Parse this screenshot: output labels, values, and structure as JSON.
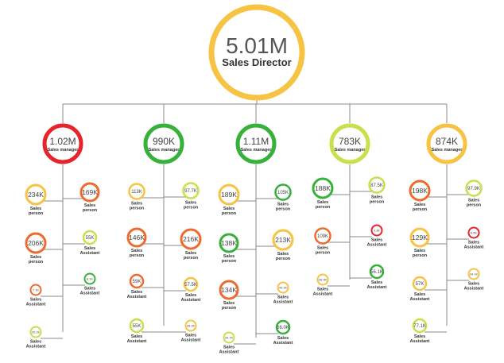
{
  "colors": {
    "line": "#8a8a8a",
    "yellow": "#f6c343",
    "orange": "#ef6a2d",
    "red": "#e5242b",
    "green": "#36b13a",
    "lime": "#c8e04a",
    "text": "#333333"
  },
  "root": {
    "value": "5.01M",
    "title": "Sales Director",
    "color": "yellow"
  },
  "managers": [
    {
      "value": "1.02M",
      "title": "Sales manager",
      "color": "red",
      "left": [
        {
          "value": "234K",
          "role": [
            "Sales",
            "person"
          ],
          "color": "yellow"
        },
        {
          "value": "206K",
          "role": [
            "Sales",
            "person"
          ],
          "color": "orange"
        },
        {
          "value": "7.1K",
          "role": [
            "Sales",
            "Assistant"
          ],
          "color": "orange"
        },
        {
          "value": "20.2K",
          "role": [
            "Sales",
            "Assistant"
          ],
          "color": "lime"
        }
      ],
      "right": [
        {
          "value": "169K",
          "role": [
            "Sales",
            "person"
          ],
          "color": "orange"
        },
        {
          "value": "55K",
          "role": [
            "Sales",
            "Assistant"
          ],
          "color": "lime"
        },
        {
          "value": "8.1K",
          "role": [
            "Sales",
            "Assistant"
          ],
          "color": "green"
        }
      ]
    },
    {
      "value": "990K",
      "title": "Sales manager",
      "color": "green",
      "left": [
        {
          "value": "113K",
          "role": [
            "Sales",
            "person"
          ],
          "color": "yellow"
        },
        {
          "value": "146K",
          "role": [
            "Sales",
            "person"
          ],
          "color": "orange"
        },
        {
          "value": "59K",
          "role": [
            "Sales",
            "Assistant"
          ],
          "color": "orange"
        },
        {
          "value": "55K",
          "role": [
            "Sales",
            "Assistant"
          ],
          "color": "lime"
        }
      ],
      "right": [
        {
          "value": "97.7K",
          "role": [
            "Sales",
            "person"
          ],
          "color": "lime"
        },
        {
          "value": "216K",
          "role": [
            "Sales",
            "person"
          ],
          "color": "orange"
        },
        {
          "value": "57.5K",
          "role": [
            "Sales",
            "Assistant"
          ],
          "color": "yellow"
        },
        {
          "value": "35.2K",
          "role": [
            "Sales",
            "Assistant"
          ],
          "color": "yellow"
        }
      ]
    },
    {
      "value": "1.11M",
      "title": "Sales manager",
      "color": "green",
      "left": [
        {
          "value": "189K",
          "role": [
            "Sales",
            "person"
          ],
          "color": "yellow"
        },
        {
          "value": "138K",
          "role": [
            "Sales",
            "person"
          ],
          "color": "green"
        },
        {
          "value": "134K",
          "role": [
            "Sales",
            "person"
          ],
          "color": "orange"
        },
        {
          "value": "34.7K",
          "role": [
            "Sales",
            "Assistant"
          ],
          "color": "lime"
        }
      ],
      "right": [
        {
          "value": "105K",
          "role": [
            "Sales",
            "person"
          ],
          "color": "green"
        },
        {
          "value": "213K",
          "role": [
            "Sales",
            "person"
          ],
          "color": "yellow"
        },
        {
          "value": "40.2K",
          "role": [
            "Sales",
            "Assistant"
          ],
          "color": "yellow"
        },
        {
          "value": "66.0K",
          "role": [
            "Sales",
            "Assistant"
          ],
          "color": "green"
        }
      ]
    },
    {
      "value": "783K",
      "title": "Sales manager",
      "color": "lime",
      "left": [
        {
          "value": "188K",
          "role": [
            "Sales",
            "person"
          ],
          "color": "green"
        },
        {
          "value": "109K",
          "role": [
            "Sales",
            "person"
          ],
          "color": "orange"
        },
        {
          "value": "39.9K",
          "role": [
            "Sales",
            "Assistant"
          ],
          "color": "yellow"
        }
      ],
      "right": [
        {
          "value": "87.5K",
          "role": [
            "Sales",
            "person"
          ],
          "color": "lime"
        },
        {
          "value": "3.3K",
          "role": [
            "Sales",
            "Assistant"
          ],
          "color": "red"
        },
        {
          "value": "56.1K",
          "role": [
            "Sales",
            "Assistant"
          ],
          "color": "green"
        }
      ]
    },
    {
      "value": "874K",
      "title": "Sales manager",
      "color": "yellow",
      "left": [
        {
          "value": "198K",
          "role": [
            "Sales",
            "person"
          ],
          "color": "orange"
        },
        {
          "value": "129K",
          "role": [
            "Sales",
            "person"
          ],
          "color": "yellow"
        },
        {
          "value": "57K",
          "role": [
            "Sales",
            "Assistant"
          ],
          "color": "yellow"
        },
        {
          "value": "77.1K",
          "role": [
            "Sales",
            "Assistant"
          ],
          "color": "lime"
        }
      ],
      "right": [
        {
          "value": "97.9K",
          "role": [
            "Sales",
            "person"
          ],
          "color": "lime"
        },
        {
          "value": "6.5K",
          "role": [
            "Sales",
            "Assistant"
          ],
          "color": "red"
        },
        {
          "value": "34.1K",
          "role": [
            "Sales",
            "Assistant"
          ],
          "color": "yellow"
        }
      ]
    }
  ]
}
